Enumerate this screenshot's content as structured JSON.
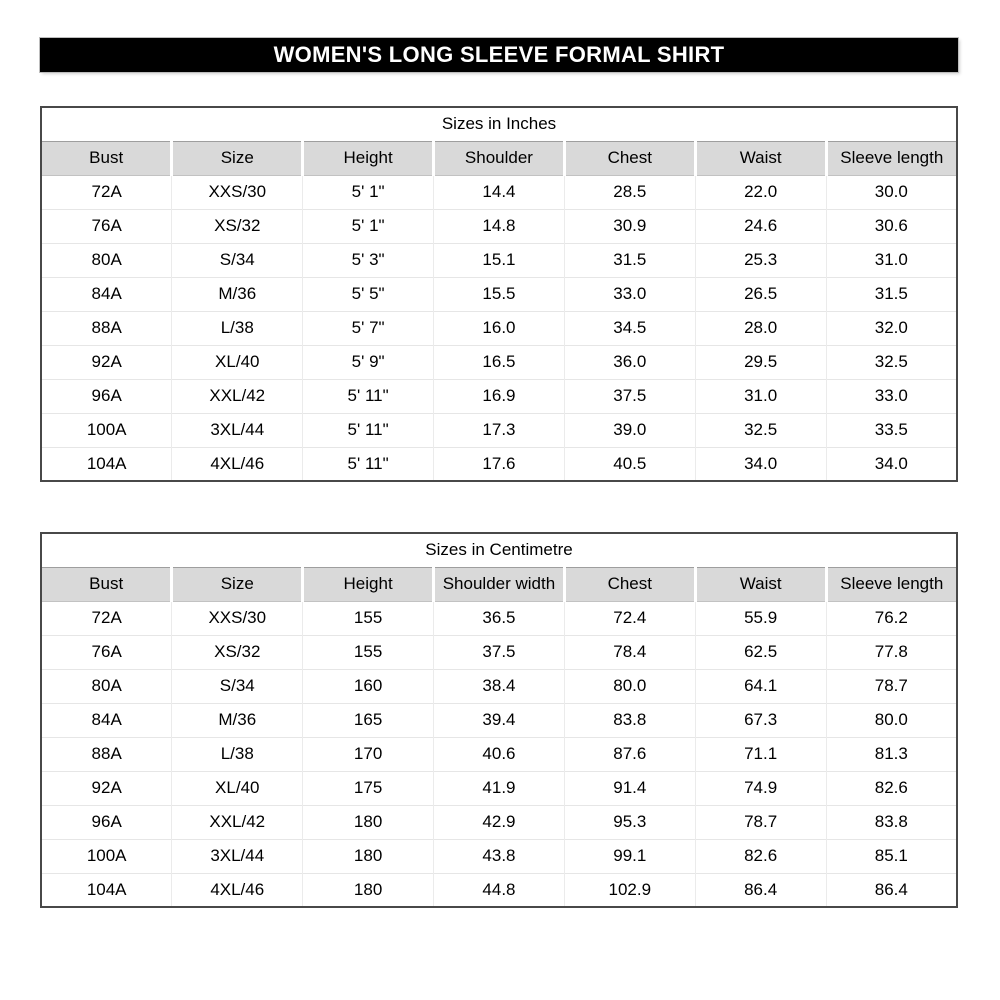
{
  "banner": {
    "title": "WOMEN'S LONG SLEEVE FORMAL SHIRT"
  },
  "colors": {
    "banner_bg": "#000000",
    "banner_text": "#ffffff",
    "header_row_bg": "#d9d9d9",
    "table_border": "#484848",
    "gridline": "#e6e6e6",
    "text": "#000000"
  },
  "tables": [
    {
      "caption": "Sizes in Inches",
      "columns": [
        "Bust",
        "Size",
        "Height",
        "Shoulder",
        "Chest",
        "Waist",
        "Sleeve length"
      ],
      "rows": [
        [
          "72A",
          "XXS/30",
          "5' 1\"",
          "14.4",
          "28.5",
          "22.0",
          "30.0"
        ],
        [
          "76A",
          "XS/32",
          "5' 1\"",
          "14.8",
          "30.9",
          "24.6",
          "30.6"
        ],
        [
          "80A",
          "S/34",
          "5' 3\"",
          "15.1",
          "31.5",
          "25.3",
          "31.0"
        ],
        [
          "84A",
          "M/36",
          "5' 5\"",
          "15.5",
          "33.0",
          "26.5",
          "31.5"
        ],
        [
          "88A",
          "L/38",
          "5' 7\"",
          "16.0",
          "34.5",
          "28.0",
          "32.0"
        ],
        [
          "92A",
          "XL/40",
          "5' 9\"",
          "16.5",
          "36.0",
          "29.5",
          "32.5"
        ],
        [
          "96A",
          "XXL/42",
          "5' 11\"",
          "16.9",
          "37.5",
          "31.0",
          "33.0"
        ],
        [
          "100A",
          "3XL/44",
          "5' 11\"",
          "17.3",
          "39.0",
          "32.5",
          "33.5"
        ],
        [
          "104A",
          "4XL/46",
          "5' 11\"",
          "17.6",
          "40.5",
          "34.0",
          "34.0"
        ]
      ]
    },
    {
      "caption": "Sizes in Centimetre",
      "columns": [
        "Bust",
        "Size",
        "Height",
        "Shoulder width",
        "Chest",
        "Waist",
        "Sleeve length"
      ],
      "rows": [
        [
          "72A",
          "XXS/30",
          "155",
          "36.5",
          "72.4",
          "55.9",
          "76.2"
        ],
        [
          "76A",
          "XS/32",
          "155",
          "37.5",
          "78.4",
          "62.5",
          "77.8"
        ],
        [
          "80A",
          "S/34",
          "160",
          "38.4",
          "80.0",
          "64.1",
          "78.7"
        ],
        [
          "84A",
          "M/36",
          "165",
          "39.4",
          "83.8",
          "67.3",
          "80.0"
        ],
        [
          "88A",
          "L/38",
          "170",
          "40.6",
          "87.6",
          "71.1",
          "81.3"
        ],
        [
          "92A",
          "XL/40",
          "175",
          "41.9",
          "91.4",
          "74.9",
          "82.6"
        ],
        [
          "96A",
          "XXL/42",
          "180",
          "42.9",
          "95.3",
          "78.7",
          "83.8"
        ],
        [
          "100A",
          "3XL/44",
          "180",
          "43.8",
          "99.1",
          "82.6",
          "85.1"
        ],
        [
          "104A",
          "4XL/46",
          "180",
          "44.8",
          "102.9",
          "86.4",
          "86.4"
        ]
      ]
    }
  ]
}
